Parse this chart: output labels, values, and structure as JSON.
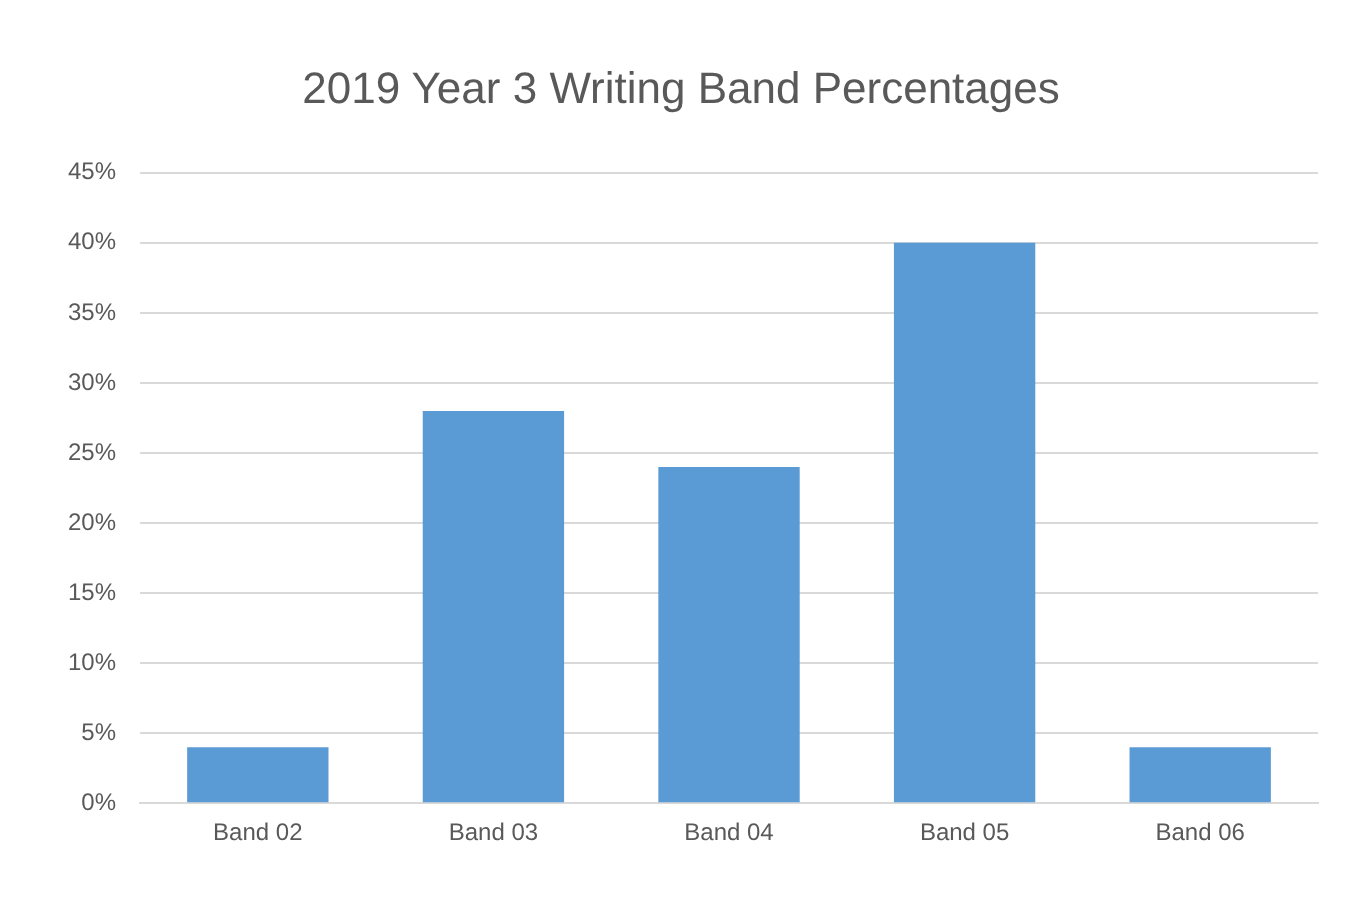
{
  "chart_data": {
    "type": "bar",
    "title": "2019 Year 3 Writing Band Percentages",
    "categories": [
      "Band 02",
      "Band 03",
      "Band 04",
      "Band 05",
      "Band 06"
    ],
    "values": [
      4,
      28,
      24,
      40,
      4
    ],
    "color": "#5b9bd5",
    "ylim": [
      0,
      45
    ],
    "yticks": [
      {
        "value": 0,
        "label": "0%"
      },
      {
        "value": 5,
        "label": "5%"
      },
      {
        "value": 10,
        "label": "10%"
      },
      {
        "value": 15,
        "label": "15%"
      },
      {
        "value": 20,
        "label": "20%"
      },
      {
        "value": 25,
        "label": "25%"
      },
      {
        "value": 30,
        "label": "30%"
      },
      {
        "value": 35,
        "label": "35%"
      },
      {
        "value": 40,
        "label": "40%"
      },
      {
        "value": 45,
        "label": "45%"
      }
    ],
    "grid": "y",
    "legend": false
  }
}
